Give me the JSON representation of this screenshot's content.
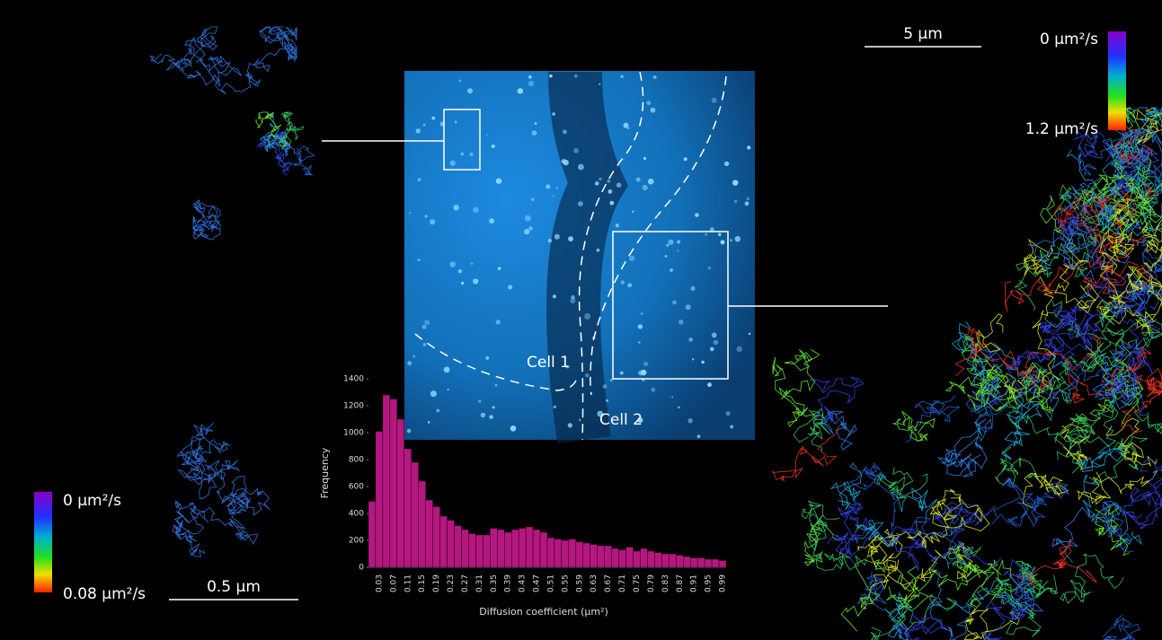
{
  "chart_data": {
    "type": "bar",
    "x_label": "Diffusion coefficient (µm²)",
    "y_label": "Frequency",
    "categories": [
      null,
      "0.03",
      null,
      "0.07",
      null,
      "0.11",
      null,
      "0.15",
      null,
      "0.19",
      null,
      "0.23",
      null,
      "0.27",
      null,
      "0.31",
      null,
      "0.35",
      null,
      "0.39",
      null,
      "0.43",
      null,
      "0.47",
      null,
      "0.51",
      null,
      "0.55",
      null,
      "0.59",
      null,
      "0.63",
      null,
      "0.67",
      null,
      "0.71",
      null,
      "0.75",
      null,
      "0.79",
      null,
      "0.83",
      null,
      "0.87",
      null,
      "0.91",
      null,
      "0.95",
      null,
      "0.99"
    ],
    "values": [
      490,
      1010,
      1280,
      1250,
      1100,
      880,
      780,
      640,
      500,
      450,
      380,
      350,
      310,
      280,
      250,
      240,
      240,
      290,
      280,
      260,
      280,
      290,
      300,
      280,
      260,
      220,
      210,
      200,
      210,
      190,
      180,
      170,
      160,
      160,
      140,
      130,
      150,
      120,
      140,
      120,
      110,
      100,
      100,
      90,
      80,
      70,
      70,
      60,
      60,
      50
    ],
    "color": "#b5177f",
    "ylim": [
      0,
      1400
    ],
    "yticks": [
      0,
      200,
      400,
      600,
      800,
      1000,
      1200,
      1400
    ]
  },
  "annotations": {
    "cell1": "Cell 1",
    "cell2": "Cell 2",
    "scale_right": "5 µm",
    "scale_left": "0.5 µm",
    "right_legend_min": "0 µm²/s",
    "right_legend_max": "1.2 µm²/s",
    "left_legend_min": "0 µm²/s",
    "left_legend_max": "0.08 µm²/s"
  }
}
